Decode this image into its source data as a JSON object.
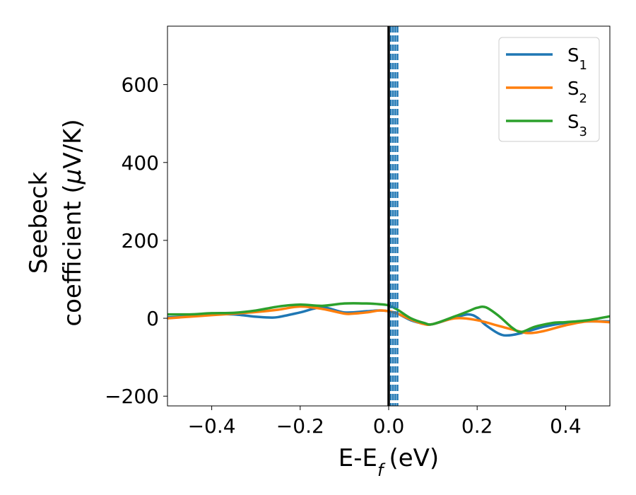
{
  "chart_data": {
    "type": "line",
    "xlabel": "E-E",
    "xlabel_subscript": "f",
    "xlabel_unit": "(eV)",
    "ylabel_line1": "Seebeck",
    "ylabel_line2_prefix": "coefficient  (",
    "ylabel_mu": "μ",
    "ylabel_line2_suffix": "V/K)",
    "xlim": [
      -0.5,
      0.5
    ],
    "ylim": [
      -225,
      750
    ],
    "xticks": [
      -0.4,
      -0.2,
      0.0,
      0.2,
      0.4
    ],
    "xtick_labels": [
      "−0.4",
      "−0.2",
      "0.0",
      "0.2",
      "0.4"
    ],
    "yticks": [
      -200,
      0,
      200,
      400,
      600
    ],
    "ytick_labels": [
      "−200",
      "0",
      "200",
      "400",
      "600"
    ],
    "grid": false,
    "legend_position": "top-right",
    "vertical_line": {
      "x": 0.0,
      "color": "#000000",
      "style": "solid"
    },
    "dashed_lines": {
      "x": [
        0.005,
        0.01,
        0.015,
        0.02
      ],
      "color": "#1f77b4",
      "style": "dashed"
    },
    "series": [
      {
        "name": "S",
        "subscript": "1",
        "color": "#1f77b4",
        "x": [
          -0.5,
          -0.45,
          -0.4,
          -0.35,
          -0.3,
          -0.27,
          -0.25,
          -0.2,
          -0.15,
          -0.1,
          -0.05,
          -0.02,
          0.0,
          0.02,
          0.05,
          0.08,
          0.1,
          0.15,
          0.18,
          0.2,
          0.22,
          0.25,
          0.27,
          0.3,
          0.35,
          0.4,
          0.45,
          0.5
        ],
        "y": [
          2,
          5,
          10,
          10,
          4,
          2,
          3,
          15,
          28,
          15,
          18,
          20,
          18,
          12,
          -5,
          -14,
          -15,
          2,
          10,
          2,
          -18,
          -40,
          -44,
          -38,
          -22,
          -12,
          -8,
          -8
        ]
      },
      {
        "name": "S",
        "subscript": "2",
        "color": "#ff7f0e",
        "x": [
          -0.5,
          -0.45,
          -0.4,
          -0.35,
          -0.3,
          -0.25,
          -0.2,
          -0.15,
          -0.1,
          -0.08,
          -0.05,
          -0.02,
          0.0,
          0.02,
          0.05,
          0.08,
          0.1,
          0.15,
          0.2,
          0.25,
          0.3,
          0.32,
          0.35,
          0.4,
          0.45,
          0.5
        ],
        "y": [
          0,
          4,
          8,
          12,
          16,
          22,
          30,
          24,
          12,
          12,
          15,
          20,
          18,
          12,
          -3,
          -15,
          -15,
          0,
          -5,
          -20,
          -35,
          -38,
          -33,
          -18,
          -8,
          -10
        ]
      },
      {
        "name": "S",
        "subscript": "3",
        "color": "#2ca02c",
        "x": [
          -0.5,
          -0.45,
          -0.4,
          -0.35,
          -0.3,
          -0.25,
          -0.2,
          -0.15,
          -0.1,
          -0.05,
          -0.02,
          0.0,
          0.02,
          0.05,
          0.08,
          0.1,
          0.15,
          0.18,
          0.2,
          0.22,
          0.25,
          0.28,
          0.3,
          0.33,
          0.37,
          0.4,
          0.45,
          0.5
        ],
        "y": [
          10,
          10,
          13,
          14,
          20,
          30,
          35,
          32,
          38,
          38,
          36,
          33,
          22,
          0,
          -12,
          -15,
          5,
          18,
          27,
          28,
          5,
          -25,
          -35,
          -22,
          -12,
          -10,
          -5,
          5
        ]
      }
    ]
  }
}
